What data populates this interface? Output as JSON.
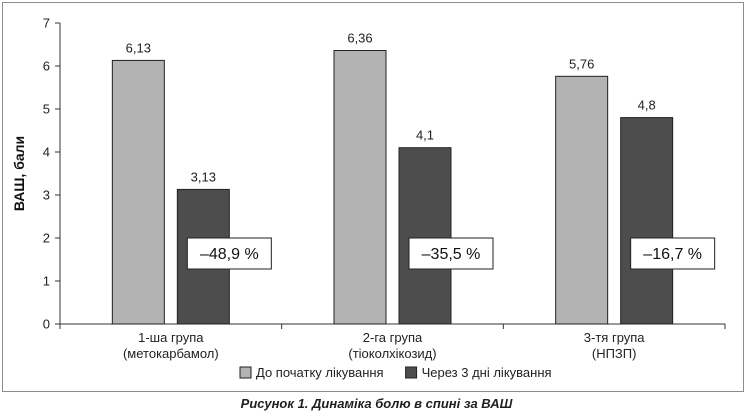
{
  "caption": "Рисунок 1. Динаміка болю в спині за ВАШ",
  "chart_data": {
    "type": "bar",
    "ylabel": "ВАШ, бали",
    "xlabel": "",
    "ylim": [
      0,
      7
    ],
    "yticks": [
      "0",
      "1",
      "2",
      "3",
      "4",
      "5",
      "6",
      "7"
    ],
    "grid": false,
    "legend_position": "bottom",
    "categories": [
      [
        "1-ша група",
        "(метокарбамол)"
      ],
      [
        "2-га група",
        "(тіоколхікозид)"
      ],
      [
        "3-тя група",
        "(НПЗП)"
      ]
    ],
    "series": [
      {
        "name": "До початку лікування",
        "values": [
          6.13,
          6.36,
          5.76
        ],
        "labels": [
          "6,13",
          "6,36",
          "5,76"
        ],
        "color": "#b3b3b3"
      },
      {
        "name": "Через 3 дні лікування",
        "values": [
          3.13,
          4.1,
          4.8
        ],
        "labels": [
          "3,13",
          "4,1",
          "4,8"
        ],
        "color": "#4d4d4d"
      }
    ],
    "annotations": [
      "–48,9 %",
      "–35,5 %",
      "–16,7 %"
    ]
  }
}
